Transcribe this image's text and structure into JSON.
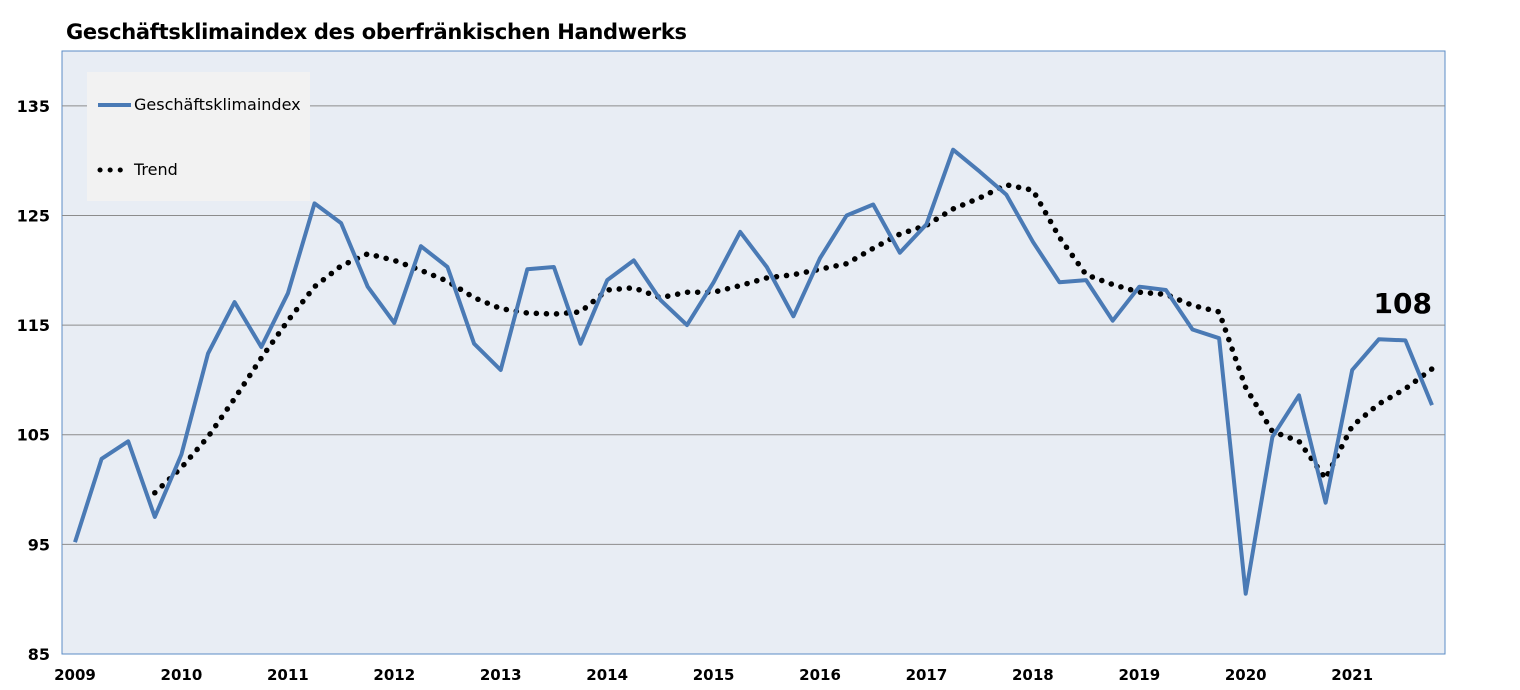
{
  "chart_data": {
    "type": "line",
    "title": "Geschäftsklimaindex des oberfränkischen Handwerks",
    "xlabel": "",
    "ylabel": "",
    "ylim": [
      85,
      140
    ],
    "yticks": [
      85,
      95,
      105,
      115,
      125,
      135
    ],
    "xticks": [
      "2009",
      "2010",
      "2011",
      "2012",
      "2013",
      "2014",
      "2015",
      "2016",
      "2017",
      "2018",
      "2019",
      "2020",
      "2021"
    ],
    "grid": true,
    "legend_position": "top-left",
    "annotation": "108",
    "colors": {
      "index": "#4a7ab5",
      "trend": "#000000",
      "plot_bg": "#e8edf4",
      "legend_bg": "#f2f2f2",
      "frame": "#5b8cc6",
      "grid": "#8c8c8c"
    },
    "series": [
      {
        "name": "Geschäftsklimaindex",
        "style": "solid",
        "x": [
          2009,
          2009.25,
          2009.5,
          2009.75,
          2010,
          2010.25,
          2010.5,
          2010.75,
          2011,
          2011.25,
          2011.5,
          2011.75,
          2012,
          2012.25,
          2012.5,
          2012.75,
          2013,
          2013.25,
          2013.5,
          2013.75,
          2014,
          2014.25,
          2014.5,
          2014.75,
          2015,
          2015.25,
          2015.5,
          2015.75,
          2016,
          2016.25,
          2016.5,
          2016.75,
          2017,
          2017.25,
          2017.5,
          2017.75,
          2018,
          2018.25,
          2018.5,
          2018.75,
          2019,
          2019.25,
          2019.5,
          2019.75,
          2020,
          2020.25,
          2020.5,
          2020.75,
          2021,
          2021.25,
          2021.5,
          2021.75
        ],
        "values": [
          95.2,
          102.8,
          104.4,
          97.5,
          103.2,
          112.4,
          117.1,
          113.0,
          117.9,
          126.1,
          124.3,
          118.5,
          115.2,
          122.2,
          120.3,
          113.3,
          110.9,
          120.1,
          120.3,
          113.3,
          119.1,
          120.9,
          117.3,
          115.0,
          118.9,
          123.5,
          120.3,
          115.8,
          121.1,
          125.0,
          126.0,
          121.6,
          124.2,
          131.0,
          129.0,
          126.9,
          122.6,
          118.9,
          119.1,
          115.4,
          118.5,
          118.2,
          114.6,
          113.8,
          90.5,
          104.8,
          108.6,
          98.8,
          110.9,
          113.7,
          113.6,
          107.7
        ]
      },
      {
        "name": "Trend",
        "style": "dotted",
        "x": [
          2009.75,
          2010,
          2010.25,
          2010.5,
          2010.75,
          2011,
          2011.25,
          2011.5,
          2011.75,
          2012,
          2012.25,
          2012.5,
          2012.75,
          2013,
          2013.25,
          2013.5,
          2013.75,
          2014,
          2014.25,
          2014.5,
          2014.75,
          2015,
          2015.25,
          2015.5,
          2015.75,
          2016,
          2016.25,
          2016.5,
          2016.75,
          2017,
          2017.25,
          2017.5,
          2017.75,
          2018,
          2018.25,
          2018.5,
          2018.75,
          2019,
          2019.25,
          2019.5,
          2019.75,
          2020,
          2020.25,
          2020.5,
          2020.75,
          2021,
          2021.25,
          2021.5,
          2021.75
        ],
        "values": [
          99.7,
          102.0,
          104.8,
          108.3,
          112.0,
          115.4,
          118.5,
          120.4,
          121.5,
          120.9,
          120.0,
          119.0,
          117.5,
          116.5,
          116.1,
          116.0,
          116.2,
          118.2,
          118.4,
          117.5,
          118.0,
          118.0,
          118.6,
          119.3,
          119.6,
          120.1,
          120.6,
          122.0,
          123.3,
          124.1,
          125.6,
          126.6,
          127.8,
          127.3,
          123.0,
          119.6,
          118.7,
          118.0,
          117.8,
          116.8,
          116.2,
          109.3,
          105.3,
          104.4,
          101.0,
          105.8,
          107.8,
          109.2,
          111.0
        ]
      }
    ]
  }
}
